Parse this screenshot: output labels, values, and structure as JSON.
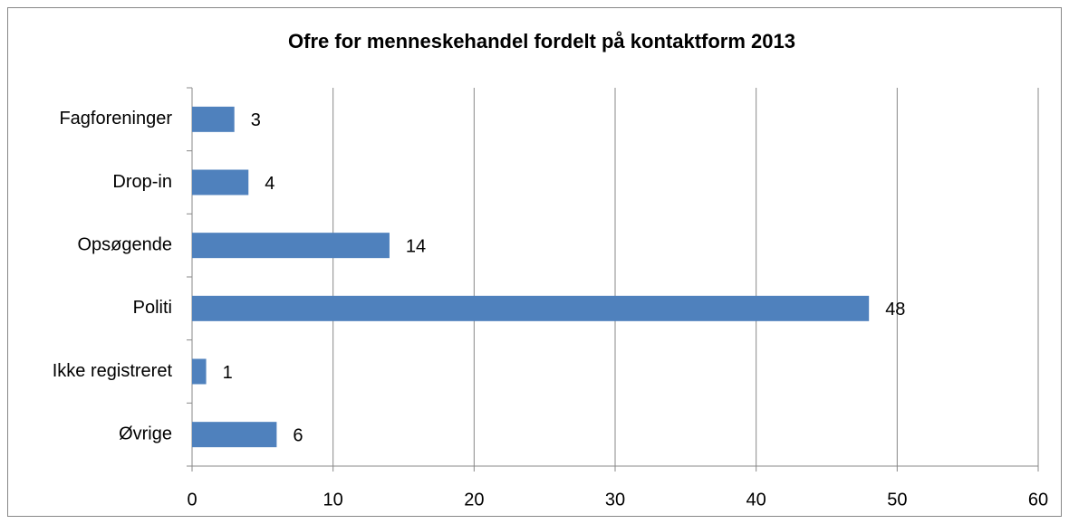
{
  "chart_data": {
    "type": "bar",
    "orientation": "horizontal",
    "title": "Ofre for menneskehandel fordelt på kontaktform 2013",
    "categories": [
      "Fagforeninger",
      "Drop-in",
      "Opsøgende",
      "Politi",
      "Ikke registreret",
      "Øvrige"
    ],
    "values": [
      3,
      4,
      14,
      48,
      1,
      6
    ],
    "color": "#4f81bd",
    "xlim": [
      0,
      60
    ],
    "xticks": [
      0,
      10,
      20,
      30,
      40,
      50,
      60
    ],
    "grid": true
  }
}
